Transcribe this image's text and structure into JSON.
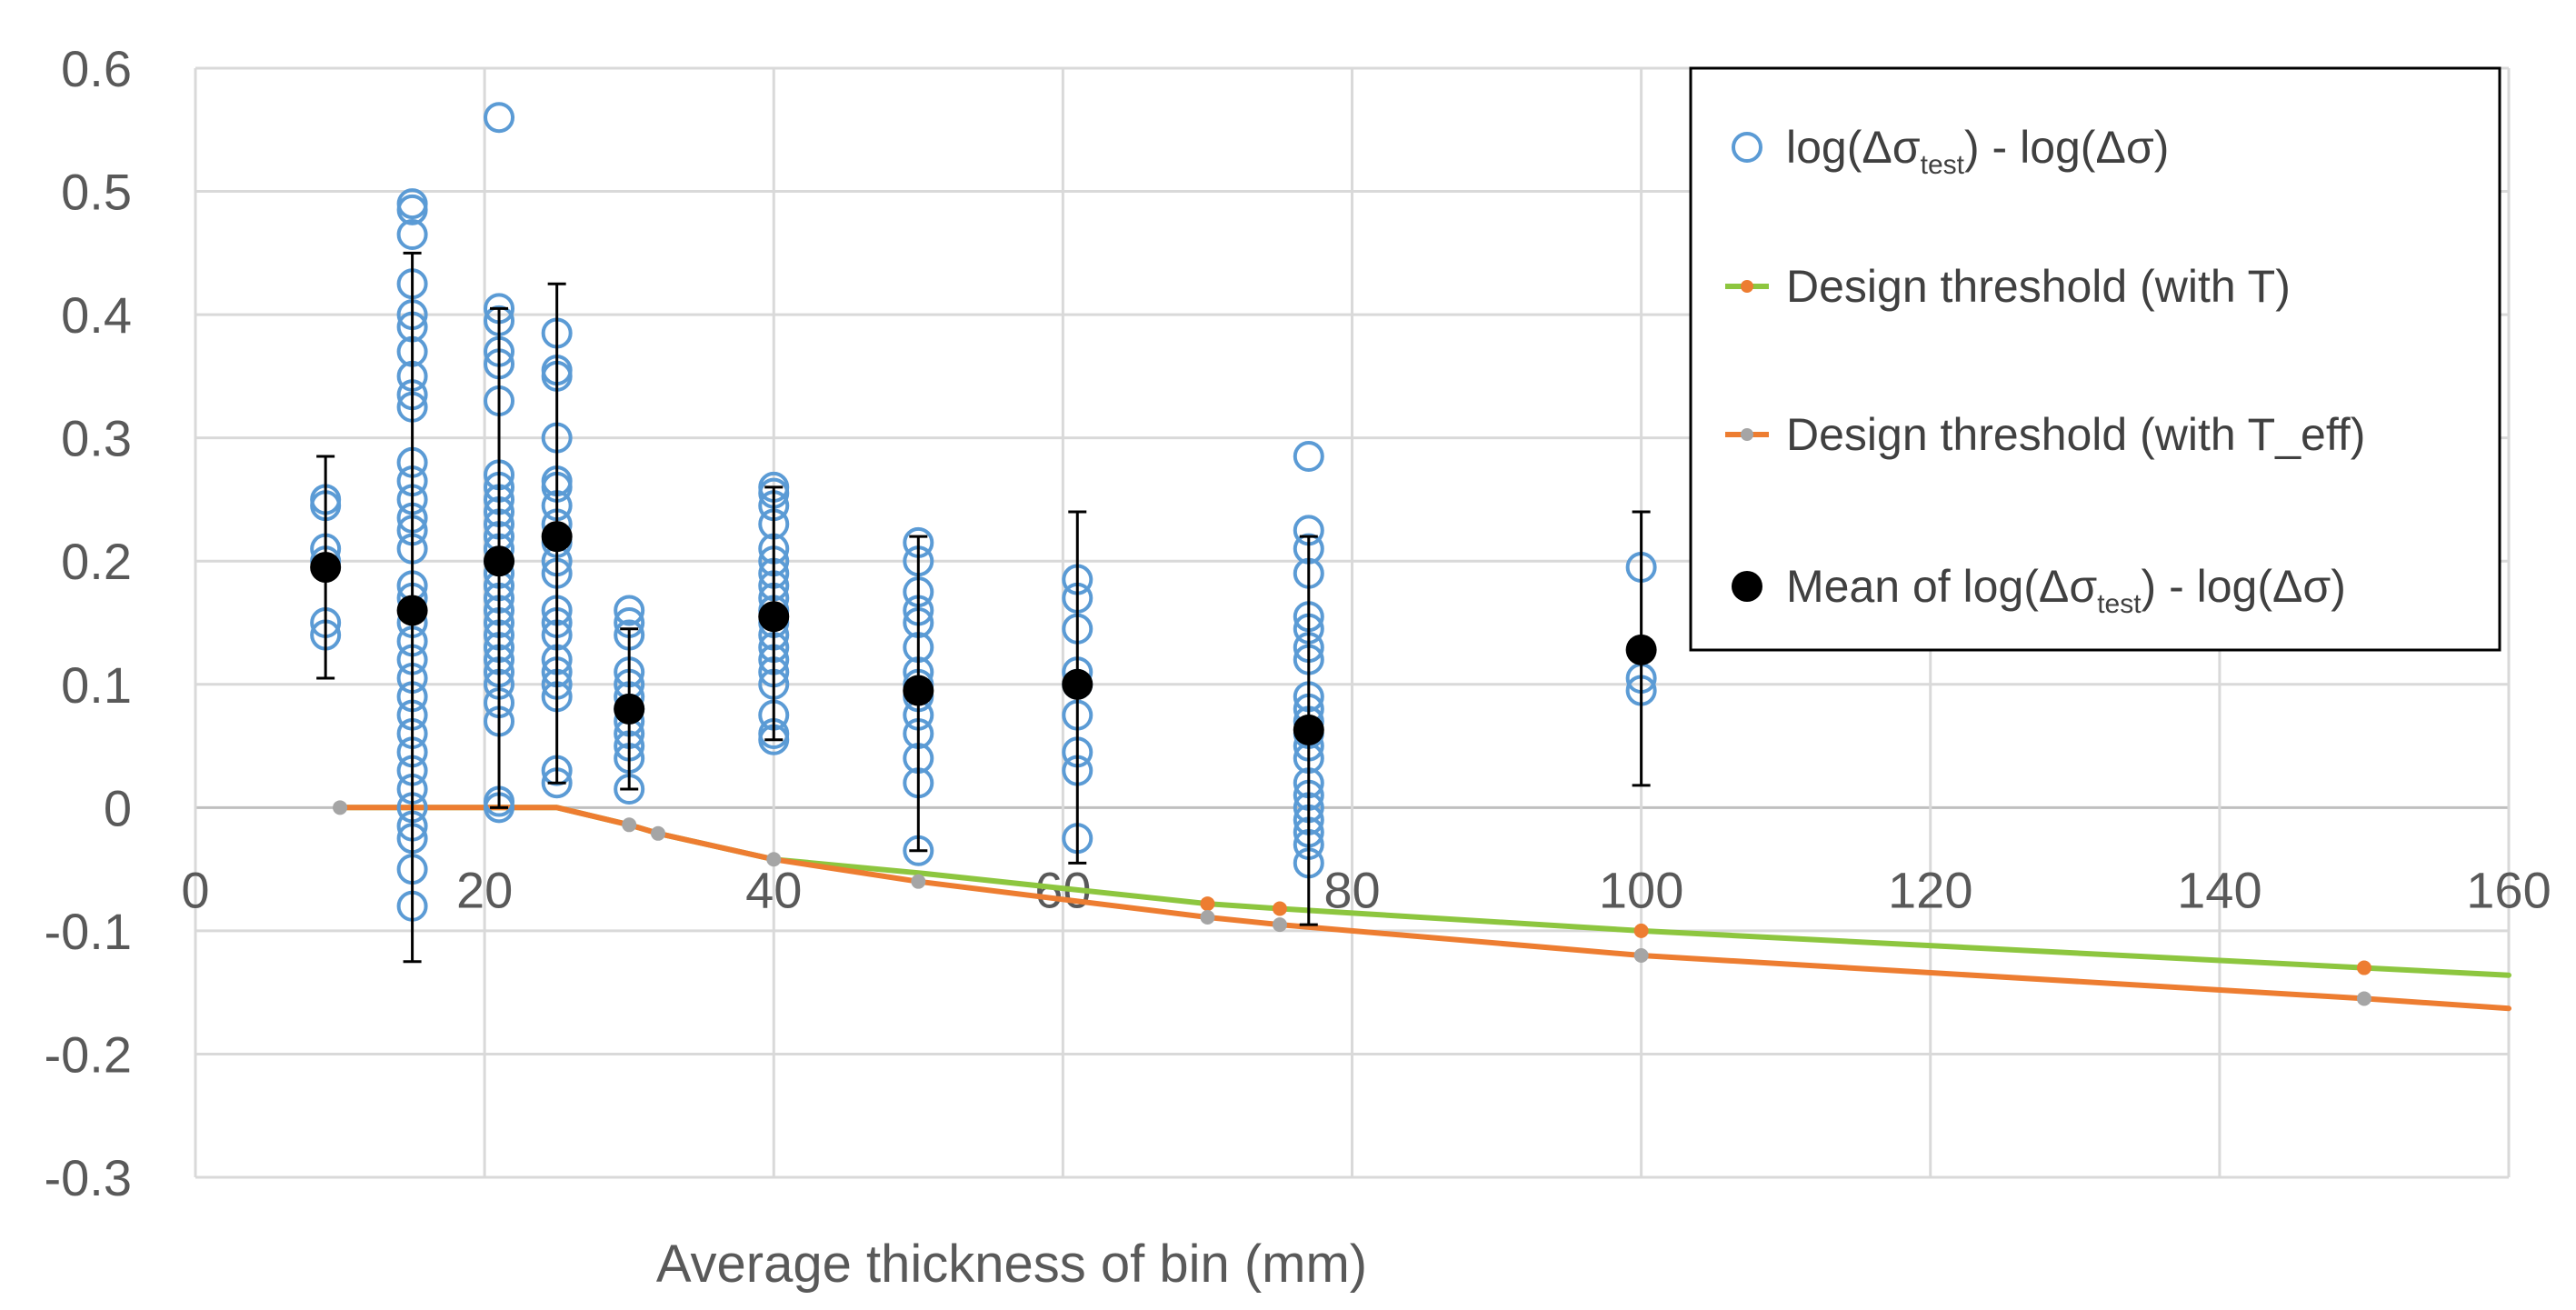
{
  "chart_data": {
    "type": "scatter",
    "title": "",
    "xlabel": "Average thickness of bin (mm)",
    "ylabel": "",
    "xlim": [
      0,
      160
    ],
    "ylim": [
      -0.3,
      0.6
    ],
    "x_ticks": [
      0,
      20,
      40,
      60,
      80,
      100,
      120,
      140,
      160
    ],
    "y_ticks": [
      -0.3,
      -0.2,
      -0.1,
      0,
      0.1,
      0.2,
      0.3,
      0.4,
      0.5,
      0.6
    ],
    "grid": true,
    "legend_position": "top-right",
    "legend": [
      {
        "series": "test",
        "text_before": "log(Δσ",
        "sub": "test",
        "text_after": ") - log(Δσ)"
      },
      {
        "series": "design_T",
        "text_before": "Design threshold (with T)",
        "sub": "",
        "text_after": ""
      },
      {
        "series": "design_Teff",
        "text_before": "Design threshold (with T_eff)",
        "sub": "",
        "text_after": ""
      },
      {
        "series": "mean",
        "text_before": "Mean of log(Δσ",
        "sub": "test",
        "text_after": ") - log(Δσ)"
      }
    ],
    "series": [
      {
        "name": "log(Δσtest) - log(Δσ)",
        "id": "test",
        "kind": "open-circle",
        "color": "#5b9bd5",
        "points": [
          [
            9,
            0.25
          ],
          [
            9,
            0.245
          ],
          [
            9,
            0.21
          ],
          [
            9,
            0.2
          ],
          [
            9,
            0.15
          ],
          [
            9,
            0.14
          ],
          [
            15,
            0.49
          ],
          [
            15,
            0.485
          ],
          [
            15,
            0.465
          ],
          [
            15,
            0.425
          ],
          [
            15,
            0.4
          ],
          [
            15,
            0.39
          ],
          [
            15,
            0.37
          ],
          [
            15,
            0.35
          ],
          [
            15,
            0.335
          ],
          [
            15,
            0.325
          ],
          [
            15,
            0.28
          ],
          [
            15,
            0.265
          ],
          [
            15,
            0.25
          ],
          [
            15,
            0.235
          ],
          [
            15,
            0.225
          ],
          [
            15,
            0.21
          ],
          [
            15,
            0.18
          ],
          [
            15,
            0.17
          ],
          [
            15,
            0.15
          ],
          [
            15,
            0.135
          ],
          [
            15,
            0.12
          ],
          [
            15,
            0.105
          ],
          [
            15,
            0.09
          ],
          [
            15,
            0.075
          ],
          [
            15,
            0.06
          ],
          [
            15,
            0.045
          ],
          [
            15,
            0.03
          ],
          [
            15,
            0.015
          ],
          [
            15,
            0.0
          ],
          [
            15,
            -0.015
          ],
          [
            15,
            -0.025
          ],
          [
            15,
            -0.05
          ],
          [
            15,
            -0.08
          ],
          [
            21,
            0.56
          ],
          [
            21,
            0.405
          ],
          [
            21,
            0.395
          ],
          [
            21,
            0.37
          ],
          [
            21,
            0.36
          ],
          [
            21,
            0.33
          ],
          [
            21,
            0.27
          ],
          [
            21,
            0.26
          ],
          [
            21,
            0.25
          ],
          [
            21,
            0.24
          ],
          [
            21,
            0.23
          ],
          [
            21,
            0.22
          ],
          [
            21,
            0.21
          ],
          [
            21,
            0.2
          ],
          [
            21,
            0.19
          ],
          [
            21,
            0.18
          ],
          [
            21,
            0.17
          ],
          [
            21,
            0.16
          ],
          [
            21,
            0.15
          ],
          [
            21,
            0.14
          ],
          [
            21,
            0.13
          ],
          [
            21,
            0.12
          ],
          [
            21,
            0.11
          ],
          [
            21,
            0.1
          ],
          [
            21,
            0.085
          ],
          [
            21,
            0.07
          ],
          [
            21,
            0.005
          ],
          [
            21,
            0.0
          ],
          [
            25,
            0.385
          ],
          [
            25,
            0.355
          ],
          [
            25,
            0.35
          ],
          [
            25,
            0.3
          ],
          [
            25,
            0.265
          ],
          [
            25,
            0.26
          ],
          [
            25,
            0.245
          ],
          [
            25,
            0.23
          ],
          [
            25,
            0.215
          ],
          [
            25,
            0.2
          ],
          [
            25,
            0.19
          ],
          [
            25,
            0.16
          ],
          [
            25,
            0.15
          ],
          [
            25,
            0.14
          ],
          [
            25,
            0.12
          ],
          [
            25,
            0.11
          ],
          [
            25,
            0.1
          ],
          [
            25,
            0.09
          ],
          [
            25,
            0.03
          ],
          [
            25,
            0.02
          ],
          [
            30,
            0.16
          ],
          [
            30,
            0.15
          ],
          [
            30,
            0.14
          ],
          [
            30,
            0.11
          ],
          [
            30,
            0.1
          ],
          [
            30,
            0.09
          ],
          [
            30,
            0.08
          ],
          [
            30,
            0.07
          ],
          [
            30,
            0.06
          ],
          [
            30,
            0.05
          ],
          [
            30,
            0.04
          ],
          [
            30,
            0.015
          ],
          [
            40,
            0.26
          ],
          [
            40,
            0.255
          ],
          [
            40,
            0.245
          ],
          [
            40,
            0.23
          ],
          [
            40,
            0.21
          ],
          [
            40,
            0.2
          ],
          [
            40,
            0.19
          ],
          [
            40,
            0.18
          ],
          [
            40,
            0.17
          ],
          [
            40,
            0.16
          ],
          [
            40,
            0.15
          ],
          [
            40,
            0.14
          ],
          [
            40,
            0.13
          ],
          [
            40,
            0.12
          ],
          [
            40,
            0.11
          ],
          [
            40,
            0.1
          ],
          [
            40,
            0.075
          ],
          [
            40,
            0.06
          ],
          [
            40,
            0.055
          ],
          [
            50,
            0.215
          ],
          [
            50,
            0.2
          ],
          [
            50,
            0.175
          ],
          [
            50,
            0.16
          ],
          [
            50,
            0.15
          ],
          [
            50,
            0.13
          ],
          [
            50,
            0.11
          ],
          [
            50,
            0.1
          ],
          [
            50,
            0.09
          ],
          [
            50,
            0.075
          ],
          [
            50,
            0.06
          ],
          [
            50,
            0.04
          ],
          [
            50,
            0.02
          ],
          [
            50,
            -0.035
          ],
          [
            61,
            0.185
          ],
          [
            61,
            0.17
          ],
          [
            61,
            0.145
          ],
          [
            61,
            0.11
          ],
          [
            61,
            0.1
          ],
          [
            61,
            0.075
          ],
          [
            61,
            0.045
          ],
          [
            61,
            0.03
          ],
          [
            61,
            -0.025
          ],
          [
            77,
            0.285
          ],
          [
            77,
            0.225
          ],
          [
            77,
            0.21
          ],
          [
            77,
            0.19
          ],
          [
            77,
            0.155
          ],
          [
            77,
            0.145
          ],
          [
            77,
            0.13
          ],
          [
            77,
            0.12
          ],
          [
            77,
            0.09
          ],
          [
            77,
            0.08
          ],
          [
            77,
            0.07
          ],
          [
            77,
            0.06
          ],
          [
            77,
            0.05
          ],
          [
            77,
            0.04
          ],
          [
            77,
            0.02
          ],
          [
            77,
            0.01
          ],
          [
            77,
            0.0
          ],
          [
            77,
            -0.01
          ],
          [
            77,
            -0.02
          ],
          [
            77,
            -0.03
          ],
          [
            77,
            -0.045
          ],
          [
            100,
            0.195
          ],
          [
            100,
            0.105
          ],
          [
            100,
            0.095
          ]
        ]
      },
      {
        "name": "Design threshold (with T)",
        "id": "design_T",
        "kind": "line",
        "color": "#8dc63f",
        "marker_color": "#ed7d31",
        "x": [
          10,
          15,
          21,
          25,
          30,
          32,
          40,
          50,
          70,
          75,
          100,
          150,
          160
        ],
        "y": [
          0,
          0,
          0,
          0,
          -0.014,
          -0.021,
          -0.042,
          -0.053,
          -0.078,
          -0.082,
          -0.1,
          -0.13,
          -0.136
        ],
        "marker_x": [
          70,
          75,
          100,
          150
        ]
      },
      {
        "name": "Design threshold (with T_eff)",
        "id": "design_Teff",
        "kind": "line",
        "color": "#ed7d31",
        "marker_color": "#a5a5a5",
        "x": [
          10,
          15,
          21,
          25,
          30,
          32,
          40,
          50,
          70,
          75,
          100,
          150,
          160
        ],
        "y": [
          0,
          0,
          0,
          0,
          -0.014,
          -0.021,
          -0.042,
          -0.06,
          -0.089,
          -0.095,
          -0.12,
          -0.155,
          -0.163
        ],
        "marker_x": [
          10,
          30,
          32,
          40,
          50,
          70,
          75,
          100,
          150
        ]
      },
      {
        "name": "Mean of log(Δσtest) - log(Δσ)",
        "id": "mean",
        "kind": "filled-circle-errorbar",
        "color": "#000000",
        "points": [
          {
            "x": 9,
            "y": 0.195,
            "lo": 0.105,
            "hi": 0.285
          },
          {
            "x": 15,
            "y": 0.16,
            "lo": -0.125,
            "hi": 0.45
          },
          {
            "x": 21,
            "y": 0.2,
            "lo": 0.0,
            "hi": 0.405
          },
          {
            "x": 25,
            "y": 0.22,
            "lo": 0.02,
            "hi": 0.425
          },
          {
            "x": 30,
            "y": 0.08,
            "lo": 0.015,
            "hi": 0.145
          },
          {
            "x": 40,
            "y": 0.155,
            "lo": 0.055,
            "hi": 0.26
          },
          {
            "x": 50,
            "y": 0.095,
            "lo": -0.035,
            "hi": 0.22
          },
          {
            "x": 61,
            "y": 0.1,
            "lo": -0.045,
            "hi": 0.24
          },
          {
            "x": 77,
            "y": 0.063,
            "lo": -0.095,
            "hi": 0.22
          },
          {
            "x": 100,
            "y": 0.128,
            "lo": 0.018,
            "hi": 0.24
          }
        ]
      }
    ]
  }
}
